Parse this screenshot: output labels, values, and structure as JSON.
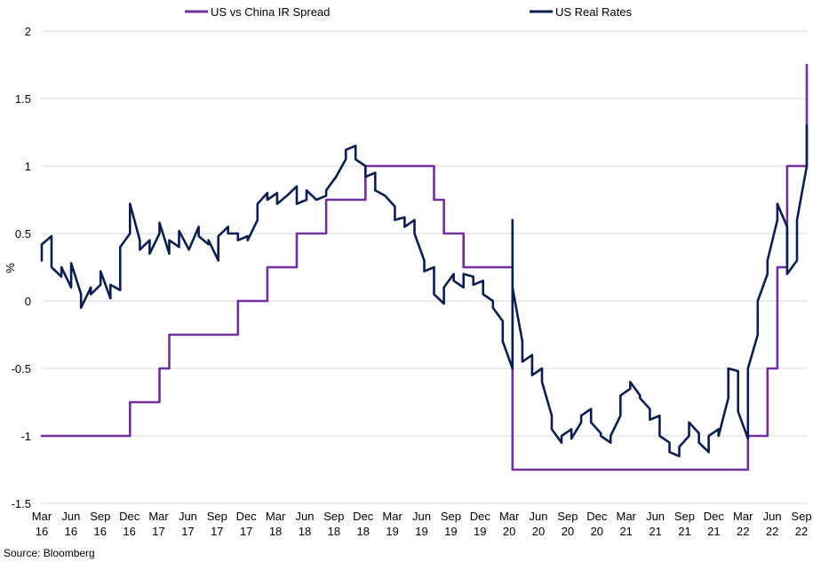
{
  "chart_data": {
    "type": "line",
    "title": "",
    "ylabel": "%",
    "xlabel": "",
    "ylim": [
      -1.5,
      2
    ],
    "yticks": [
      2,
      1.5,
      1,
      0.5,
      0,
      -0.5,
      -1,
      -1.5
    ],
    "ytick_labels": [
      "2",
      "1.5",
      "1",
      "0.5",
      "0",
      "-0.5",
      "-1",
      "-1.5"
    ],
    "x_range": [
      "2016-03",
      "2022-09"
    ],
    "xticks": [
      {
        "month": "Mar",
        "year": "16"
      },
      {
        "month": "Jun",
        "year": "16"
      },
      {
        "month": "Sep",
        "year": "16"
      },
      {
        "month": "Dec",
        "year": "16"
      },
      {
        "month": "Mar",
        "year": "17"
      },
      {
        "month": "Jun",
        "year": "17"
      },
      {
        "month": "Sep",
        "year": "17"
      },
      {
        "month": "Dec",
        "year": "17"
      },
      {
        "month": "Mar",
        "year": "18"
      },
      {
        "month": "Jun",
        "year": "18"
      },
      {
        "month": "Sep",
        "year": "18"
      },
      {
        "month": "Dec",
        "year": "18"
      },
      {
        "month": "Mar",
        "year": "19"
      },
      {
        "month": "Jun",
        "year": "19"
      },
      {
        "month": "Sep",
        "year": "19"
      },
      {
        "month": "Dec",
        "year": "19"
      },
      {
        "month": "Mar",
        "year": "20"
      },
      {
        "month": "Jun",
        "year": "20"
      },
      {
        "month": "Sep",
        "year": "20"
      },
      {
        "month": "Dec",
        "year": "20"
      },
      {
        "month": "Mar",
        "year": "21"
      },
      {
        "month": "Jun",
        "year": "21"
      },
      {
        "month": "Sep",
        "year": "21"
      },
      {
        "month": "Dec",
        "year": "21"
      },
      {
        "month": "Mar",
        "year": "22"
      },
      {
        "month": "Jun",
        "year": "22"
      },
      {
        "month": "Sep",
        "year": "22"
      }
    ],
    "grid": "horizontal",
    "legend_position": "top",
    "source": "Source: Bloomberg",
    "series": [
      {
        "name": "US vs China IR Spread",
        "color": "#7030a0",
        "style": "step",
        "points": [
          [
            "2016-03",
            -1
          ],
          [
            "2016-12",
            -1
          ],
          [
            "2016-12",
            -0.75
          ],
          [
            "2017-03",
            -0.75
          ],
          [
            "2017-03",
            -0.5
          ],
          [
            "2017-04",
            -0.5
          ],
          [
            "2017-04",
            -0.25
          ],
          [
            "2017-11",
            -0.25
          ],
          [
            "2017-11",
            0
          ],
          [
            "2018-02",
            0
          ],
          [
            "2018-02",
            0.25
          ],
          [
            "2018-05",
            0.25
          ],
          [
            "2018-05",
            0.5
          ],
          [
            "2018-08",
            0.5
          ],
          [
            "2018-08",
            0.75
          ],
          [
            "2018-12",
            0.75
          ],
          [
            "2018-12",
            1
          ],
          [
            "2019-07",
            1
          ],
          [
            "2019-07",
            0.75
          ],
          [
            "2019-08",
            0.75
          ],
          [
            "2019-08",
            0.5
          ],
          [
            "2019-10",
            0.5
          ],
          [
            "2019-10",
            0.25
          ],
          [
            "2020-03",
            0.25
          ],
          [
            "2020-03",
            -1.25
          ],
          [
            "2022-03",
            -1.25
          ],
          [
            "2022-03",
            -1
          ],
          [
            "2022-05",
            -1
          ],
          [
            "2022-05",
            -0.5
          ],
          [
            "2022-06",
            -0.5
          ],
          [
            "2022-06",
            0.25
          ],
          [
            "2022-07",
            0.25
          ],
          [
            "2022-07",
            1
          ],
          [
            "2022-09",
            1
          ],
          [
            "2022-09",
            1.75
          ]
        ]
      },
      {
        "name": "US Real Rates",
        "color": "#0a1e50",
        "style": "line",
        "points": [
          [
            "2016-03",
            0.3
          ],
          [
            "2016-03",
            0.42
          ],
          [
            "2016-04",
            0.48
          ],
          [
            "2016-04",
            0.25
          ],
          [
            "2016-05",
            0.18
          ],
          [
            "2016-05",
            0.25
          ],
          [
            "2016-06",
            0.1
          ],
          [
            "2016-06",
            0.28
          ],
          [
            "2016-07",
            0.05
          ],
          [
            "2016-07",
            -0.05
          ],
          [
            "2016-08",
            0.1
          ],
          [
            "2016-08",
            0.05
          ],
          [
            "2016-09",
            0.12
          ],
          [
            "2016-09",
            0.22
          ],
          [
            "2016-10",
            0.02
          ],
          [
            "2016-10",
            0.12
          ],
          [
            "2016-11",
            0.08
          ],
          [
            "2016-11",
            0.4
          ],
          [
            "2016-12",
            0.5
          ],
          [
            "2016-12",
            0.72
          ],
          [
            "2017-01",
            0.45
          ],
          [
            "2017-01",
            0.38
          ],
          [
            "2017-02",
            0.45
          ],
          [
            "2017-02",
            0.35
          ],
          [
            "2017-03",
            0.5
          ],
          [
            "2017-03",
            0.58
          ],
          [
            "2017-04",
            0.35
          ],
          [
            "2017-04",
            0.45
          ],
          [
            "2017-05",
            0.4
          ],
          [
            "2017-05",
            0.52
          ],
          [
            "2017-06",
            0.38
          ],
          [
            "2017-07",
            0.55
          ],
          [
            "2017-07",
            0.48
          ],
          [
            "2017-08",
            0.42
          ],
          [
            "2017-08",
            0.45
          ],
          [
            "2017-09",
            0.3
          ],
          [
            "2017-09",
            0.48
          ],
          [
            "2017-10",
            0.55
          ],
          [
            "2017-10",
            0.5
          ],
          [
            "2017-11",
            0.5
          ],
          [
            "2017-11",
            0.45
          ],
          [
            "2017-12",
            0.48
          ],
          [
            "2017-12",
            0.45
          ],
          [
            "2018-01",
            0.6
          ],
          [
            "2018-01",
            0.72
          ],
          [
            "2018-02",
            0.8
          ],
          [
            "2018-02",
            0.75
          ],
          [
            "2018-03",
            0.8
          ],
          [
            "2018-03",
            0.72
          ],
          [
            "2018-04",
            0.78
          ],
          [
            "2018-05",
            0.85
          ],
          [
            "2018-05",
            0.72
          ],
          [
            "2018-06",
            0.75
          ],
          [
            "2018-06",
            0.82
          ],
          [
            "2018-07",
            0.75
          ],
          [
            "2018-08",
            0.78
          ],
          [
            "2018-08",
            0.82
          ],
          [
            "2018-09",
            0.92
          ],
          [
            "2018-10",
            1.05
          ],
          [
            "2018-10",
            1.12
          ],
          [
            "2018-11",
            1.15
          ],
          [
            "2018-11",
            1.05
          ],
          [
            "2018-12",
            1.0
          ],
          [
            "2018-12",
            0.92
          ],
          [
            "2019-01",
            0.95
          ],
          [
            "2019-01",
            0.82
          ],
          [
            "2019-02",
            0.78
          ],
          [
            "2019-03",
            0.7
          ],
          [
            "2019-03",
            0.6
          ],
          [
            "2019-04",
            0.62
          ],
          [
            "2019-04",
            0.55
          ],
          [
            "2019-05",
            0.6
          ],
          [
            "2019-05",
            0.5
          ],
          [
            "2019-06",
            0.3
          ],
          [
            "2019-06",
            0.22
          ],
          [
            "2019-07",
            0.25
          ],
          [
            "2019-07",
            0.05
          ],
          [
            "2019-08",
            -0.02
          ],
          [
            "2019-08",
            0.1
          ],
          [
            "2019-09",
            0.2
          ],
          [
            "2019-09",
            0.15
          ],
          [
            "2019-10",
            0.1
          ],
          [
            "2019-10",
            0.2
          ],
          [
            "2019-11",
            0.18
          ],
          [
            "2019-11",
            0.12
          ],
          [
            "2019-12",
            0.15
          ],
          [
            "2019-12",
            0.05
          ],
          [
            "2020-01",
            0.0
          ],
          [
            "2020-01",
            -0.05
          ],
          [
            "2020-02",
            -0.15
          ],
          [
            "2020-02",
            -0.3
          ],
          [
            "2020-03",
            -0.5
          ],
          [
            "2020-03",
            0.6
          ],
          [
            "2020-03",
            0.1
          ],
          [
            "2020-04",
            -0.3
          ],
          [
            "2020-04",
            -0.45
          ],
          [
            "2020-05",
            -0.4
          ],
          [
            "2020-05",
            -0.55
          ],
          [
            "2020-06",
            -0.5
          ],
          [
            "2020-06",
            -0.6
          ],
          [
            "2020-07",
            -0.85
          ],
          [
            "2020-07",
            -0.95
          ],
          [
            "2020-08",
            -1.05
          ],
          [
            "2020-08",
            -1.0
          ],
          [
            "2020-09",
            -0.95
          ],
          [
            "2020-09",
            -1.02
          ],
          [
            "2020-10",
            -0.9
          ],
          [
            "2020-10",
            -0.85
          ],
          [
            "2020-11",
            -0.8
          ],
          [
            "2020-11",
            -0.9
          ],
          [
            "2020-12",
            -0.98
          ],
          [
            "2020-12",
            -1.0
          ],
          [
            "2021-01",
            -1.05
          ],
          [
            "2021-01",
            -1.0
          ],
          [
            "2021-02",
            -0.85
          ],
          [
            "2021-02",
            -0.7
          ],
          [
            "2021-03",
            -0.65
          ],
          [
            "2021-03",
            -0.6
          ],
          [
            "2021-04",
            -0.7
          ],
          [
            "2021-04",
            -0.72
          ],
          [
            "2021-05",
            -0.8
          ],
          [
            "2021-05",
            -0.88
          ],
          [
            "2021-06",
            -0.85
          ],
          [
            "2021-06",
            -1.0
          ],
          [
            "2021-07",
            -1.05
          ],
          [
            "2021-07",
            -1.12
          ],
          [
            "2021-08",
            -1.15
          ],
          [
            "2021-08",
            -1.08
          ],
          [
            "2021-09",
            -1.0
          ],
          [
            "2021-09",
            -0.9
          ],
          [
            "2021-10",
            -0.98
          ],
          [
            "2021-10",
            -1.05
          ],
          [
            "2021-11",
            -1.12
          ],
          [
            "2021-11",
            -1.0
          ],
          [
            "2021-12",
            -0.95
          ],
          [
            "2021-12",
            -1.0
          ],
          [
            "2022-01",
            -0.72
          ],
          [
            "2022-01",
            -0.5
          ],
          [
            "2022-02",
            -0.52
          ],
          [
            "2022-02",
            -0.82
          ],
          [
            "2022-03",
            -1.02
          ],
          [
            "2022-03",
            -0.5
          ],
          [
            "2022-04",
            -0.25
          ],
          [
            "2022-04",
            0.0
          ],
          [
            "2022-05",
            0.2
          ],
          [
            "2022-05",
            0.3
          ],
          [
            "2022-06",
            0.6
          ],
          [
            "2022-06",
            0.72
          ],
          [
            "2022-07",
            0.55
          ],
          [
            "2022-07",
            0.2
          ],
          [
            "2022-08",
            0.3
          ],
          [
            "2022-08",
            0.6
          ],
          [
            "2022-09",
            1.0
          ],
          [
            "2022-09",
            1.3
          ]
        ]
      }
    ]
  }
}
